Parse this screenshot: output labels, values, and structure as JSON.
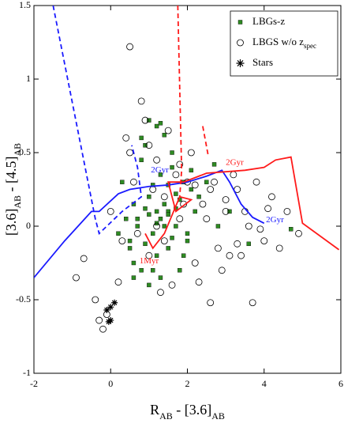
{
  "chart_data": {
    "type": "scatter",
    "xlabel": [
      "R",
      "AB",
      " - [3.6]",
      "AB"
    ],
    "xlabel_sub": [
      false,
      true,
      false,
      true
    ],
    "ylabel": [
      "[3.6]",
      "AB",
      " - [4.5]",
      "AB"
    ],
    "ylabel_sub": [
      false,
      true,
      false,
      true
    ],
    "xlim": [
      -2,
      6
    ],
    "xticks": [
      -2,
      0,
      2,
      4,
      6
    ],
    "ylim": [
      -1,
      1.5
    ],
    "yticks": [
      -1,
      -0.5,
      0,
      0.5,
      1,
      1.5
    ],
    "legend": "upper right",
    "series": [
      {
        "name": "LBGs-z",
        "marker": "square",
        "color": "#2e8b22",
        "x": [
          0.3,
          0.5,
          0.6,
          0.7,
          0.8,
          0.9,
          1.0,
          1.0,
          1.1,
          1.2,
          1.2,
          1.3,
          1.3,
          1.4,
          1.5,
          1.5,
          1.6,
          1.7,
          1.8,
          1.9,
          2.0,
          2.1,
          2.2,
          0.4,
          0.6,
          0.8,
          0.9,
          1.1,
          1.3,
          1.4,
          1.6,
          1.7,
          1.9,
          2.0,
          0.5,
          0.7,
          1.0,
          1.2,
          1.5,
          1.8,
          2.3,
          2.5,
          2.8,
          3.1,
          0.2,
          0.9,
          1.1,
          1.4,
          1.6,
          2.1,
          1.0,
          1.3,
          0.8,
          1.5,
          1.7,
          0.6,
          4.7,
          3.6,
          2.7,
          1.2
        ],
        "values": [
          0.3,
          -0.1,
          0.15,
          0.0,
          -0.3,
          0.55,
          0.72,
          0.2,
          -0.05,
          0.68,
          0.1,
          0.05,
          -0.35,
          0.62,
          0.28,
          -0.15,
          0.4,
          0.0,
          0.18,
          -0.2,
          -0.1,
          0.25,
          0.1,
          0.05,
          -0.25,
          0.45,
          0.12,
          -0.3,
          0.35,
          0.0,
          -0.08,
          0.22,
          0.3,
          -0.05,
          -0.15,
          0.05,
          0.08,
          -0.2,
          0.1,
          -0.3,
          0.2,
          0.3,
          0.0,
          0.1,
          -0.05,
          -0.12,
          0.28,
          0.15,
          0.5,
          0.38,
          -0.4,
          0.7,
          0.6,
          0.08,
          0.12,
          -0.35,
          -0.02,
          -0.12,
          0.42,
          0.02
        ]
      },
      {
        "name": "LBGS w/o z",
        "name_sub": "spec",
        "marker": "circle",
        "color": "#000000",
        "x": [
          -0.9,
          -0.7,
          -0.4,
          -0.3,
          -0.2,
          -0.1,
          0.0,
          0.2,
          0.3,
          0.5,
          0.6,
          0.8,
          1.0,
          1.2,
          1.4,
          1.6,
          1.8,
          2.0,
          2.2,
          2.4,
          2.6,
          2.8,
          3.0,
          3.2,
          3.4,
          3.6,
          3.8,
          4.0,
          4.2,
          4.4,
          4.6,
          4.9,
          0.4,
          0.9,
          1.3,
          1.7,
          2.1,
          2.5,
          2.9,
          3.3,
          3.7,
          4.1,
          1.1,
          1.5,
          1.9,
          2.3,
          2.7,
          3.1,
          3.5,
          3.9,
          0.7,
          1.0,
          1.4,
          1.8,
          2.2,
          2.6,
          3.0,
          0.5,
          1.2,
          3.3
        ],
        "values": [
          -0.35,
          -0.22,
          -0.5,
          -0.64,
          -0.7,
          -0.6,
          0.1,
          -0.38,
          -0.1,
          1.22,
          0.3,
          0.85,
          -0.2,
          0.45,
          0.2,
          -0.4,
          0.05,
          0.3,
          -0.25,
          0.15,
          0.25,
          -0.15,
          0.1,
          0.35,
          -0.2,
          0.0,
          0.3,
          -0.1,
          0.2,
          -0.15,
          0.1,
          -0.05,
          0.6,
          0.72,
          -0.45,
          0.35,
          0.5,
          0.05,
          -0.3,
          0.25,
          -0.52,
          0.12,
          0.25,
          0.65,
          0.15,
          -0.38,
          0.3,
          -0.2,
          0.1,
          -0.02,
          -0.05,
          0.55,
          -0.1,
          0.42,
          0.28,
          -0.52,
          0.18,
          0.5,
          0.0,
          -0.12
        ]
      },
      {
        "name": "Stars",
        "marker": "star",
        "color": "#000000",
        "x": [
          0.0,
          -0.1,
          0.1,
          0.0,
          -0.05
        ],
        "values": [
          -0.55,
          -0.57,
          -0.52,
          -0.64,
          -0.65
        ]
      },
      {
        "marker": "line",
        "color": "#1a1aff",
        "dash": false,
        "x": [
          -2.0,
          -1.2,
          -0.5,
          -0.3,
          0.2,
          0.5,
          1.0,
          1.5,
          2.0,
          2.5,
          2.9,
          3.1,
          3.4,
          3.7,
          4.0
        ],
        "values": [
          -0.35,
          -0.1,
          0.1,
          0.1,
          0.22,
          0.25,
          0.27,
          0.28,
          0.3,
          0.34,
          0.38,
          0.3,
          0.15,
          0.06,
          0.02
        ]
      },
      {
        "marker": "line",
        "color": "#1a1aff",
        "dash": true,
        "x": [
          -1.5,
          -0.4,
          -0.3,
          0.3,
          0.8,
          0.7,
          0.55
        ],
        "values": [
          1.5,
          0.05,
          -0.05,
          0.1,
          0.2,
          0.4,
          0.55
        ]
      },
      {
        "marker": "line",
        "color": "#ff1a1a",
        "dash": false,
        "x": [
          0.9,
          1.1,
          1.4,
          1.8,
          2.1,
          1.7,
          1.5,
          1.9,
          2.5,
          3.5,
          4.0,
          4.3,
          4.7,
          5.0,
          5.95
        ],
        "values": [
          -0.05,
          -0.15,
          -0.05,
          0.2,
          0.18,
          0.1,
          0.3,
          0.3,
          0.36,
          0.38,
          0.4,
          0.45,
          0.47,
          0.02,
          -0.16
        ]
      },
      {
        "marker": "line",
        "color": "#ff1a1a",
        "dash": true,
        "x": [
          1.75,
          1.85,
          1.8
        ],
        "values": [
          1.5,
          0.38,
          0.2
        ]
      },
      {
        "marker": "line",
        "color": "#ff1a1a",
        "dash": true,
        "x": [
          2.4,
          2.55
        ],
        "values": [
          0.68,
          0.47
        ]
      }
    ],
    "annotations": [
      {
        "text": "2Gyr",
        "color": "#1a1aff"
      },
      {
        "text": "2Gyr",
        "color": "#ff1a1a"
      },
      {
        "text": "2Gyr",
        "color": "#1a1aff"
      },
      {
        "text": "1Myr",
        "color": "#ff1a1a"
      }
    ]
  }
}
